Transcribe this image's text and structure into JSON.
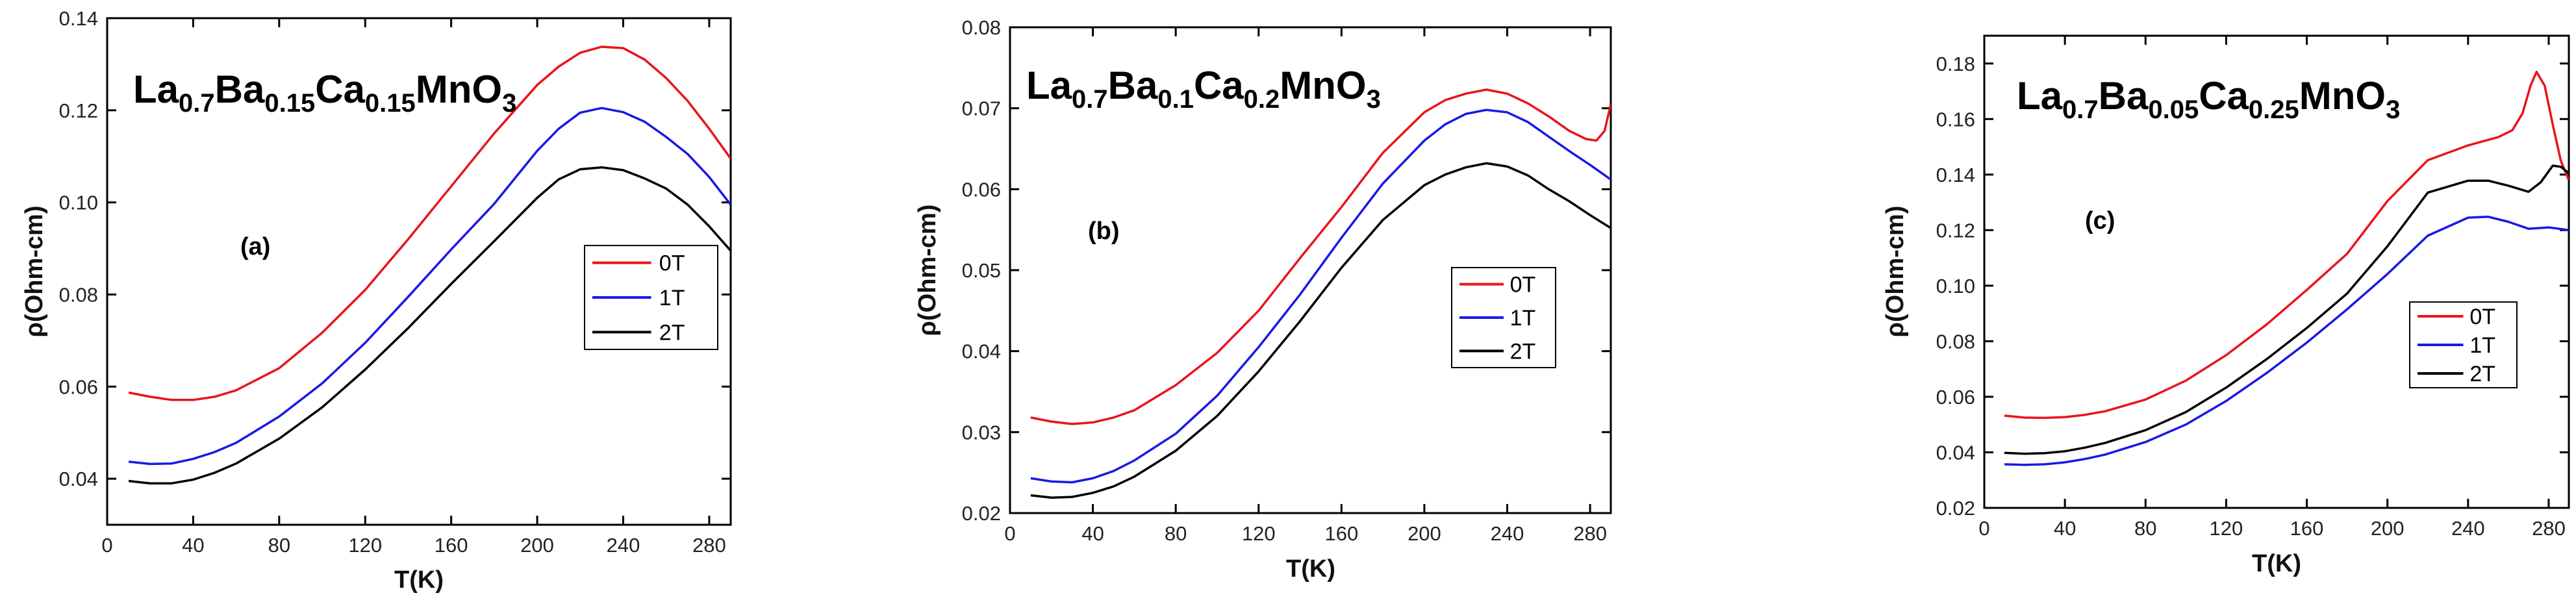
{
  "chart_data": [
    {
      "type": "line",
      "panel_label": "(a)",
      "title_parts": [
        {
          "t": "La",
          "sub": false
        },
        {
          "t": "0.7",
          "sub": true
        },
        {
          "t": "Ba",
          "sub": false
        },
        {
          "t": "0.15",
          "sub": true
        },
        {
          "t": "Ca",
          "sub": false
        },
        {
          "t": "0.15",
          "sub": true
        },
        {
          "t": "MnO",
          "sub": false
        },
        {
          "t": "3",
          "sub": true
        }
      ],
      "xlabel": "T(K)",
      "ylabel": "ρ(Ohm-cm)",
      "xlim": [
        0,
        290
      ],
      "ylim": [
        0.03,
        0.14
      ],
      "xticks": [
        "0",
        "40",
        "80",
        "120",
        "160",
        "200",
        "240",
        "280"
      ],
      "xtick_values": [
        0,
        40,
        80,
        120,
        160,
        200,
        240,
        280
      ],
      "yticks": [
        "0.04",
        "0.06",
        "0.08",
        "0.10",
        "0.12",
        "0.14"
      ],
      "ytick_values": [
        0.04,
        0.06,
        0.08,
        0.1,
        0.12,
        0.14
      ],
      "series": [
        {
          "name": "0T",
          "color": "#e8151b",
          "x": [
            10,
            20,
            30,
            40,
            50,
            60,
            80,
            100,
            120,
            140,
            160,
            180,
            200,
            210,
            220,
            230,
            240,
            250,
            260,
            270,
            280,
            290
          ],
          "y": [
            0.0587,
            0.0578,
            0.0571,
            0.0571,
            0.0578,
            0.0592,
            0.064,
            0.0717,
            0.081,
            0.092,
            0.1035,
            0.115,
            0.1255,
            0.1295,
            0.1325,
            0.1338,
            0.1335,
            0.131,
            0.127,
            0.122,
            0.116,
            0.1095
          ]
        },
        {
          "name": "1T",
          "color": "#1919e6",
          "x": [
            10,
            20,
            30,
            40,
            50,
            60,
            80,
            100,
            120,
            140,
            160,
            180,
            200,
            210,
            220,
            230,
            240,
            250,
            260,
            270,
            280,
            290
          ],
          "y": [
            0.0437,
            0.0432,
            0.0433,
            0.0443,
            0.0458,
            0.0478,
            0.0535,
            0.0607,
            0.0695,
            0.0795,
            0.0898,
            0.0997,
            0.1112,
            0.116,
            0.1195,
            0.1205,
            0.1196,
            0.1175,
            0.1142,
            0.1105,
            0.1055,
            0.0995
          ]
        },
        {
          "name": "2T",
          "color": "#000000",
          "x": [
            10,
            20,
            30,
            40,
            50,
            60,
            80,
            100,
            120,
            140,
            160,
            180,
            200,
            210,
            220,
            230,
            240,
            250,
            260,
            270,
            280,
            290
          ],
          "y": [
            0.0395,
            0.039,
            0.039,
            0.0398,
            0.0413,
            0.0433,
            0.0487,
            0.0555,
            0.0637,
            0.0727,
            0.0823,
            0.0916,
            0.101,
            0.105,
            0.1072,
            0.1076,
            0.107,
            0.1052,
            0.103,
            0.0995,
            0.0948,
            0.0895
          ]
        }
      ]
    },
    {
      "type": "line",
      "panel_label": "(b)",
      "title_parts": [
        {
          "t": "La",
          "sub": false
        },
        {
          "t": "0.7",
          "sub": true
        },
        {
          "t": "Ba",
          "sub": false
        },
        {
          "t": "0.1",
          "sub": true
        },
        {
          "t": "Ca",
          "sub": false
        },
        {
          "t": "0.2",
          "sub": true
        },
        {
          "t": "MnO",
          "sub": false
        },
        {
          "t": "3",
          "sub": true
        }
      ],
      "xlabel": "T(K)",
      "ylabel": "ρ(Ohm-cm)",
      "xlim": [
        0,
        290
      ],
      "ylim": [
        0.02,
        0.08
      ],
      "xticks": [
        "0",
        "40",
        "80",
        "120",
        "160",
        "200",
        "240",
        "280"
      ],
      "xtick_values": [
        0,
        40,
        80,
        120,
        160,
        200,
        240,
        280
      ],
      "yticks": [
        "0.02",
        "0.03",
        "0.04",
        "0.05",
        "0.06",
        "0.07",
        "0.08"
      ],
      "ytick_values": [
        0.02,
        0.03,
        0.04,
        0.05,
        0.06,
        0.07,
        0.08
      ],
      "series": [
        {
          "name": "0T",
          "color": "#e8151b",
          "x": [
            10,
            20,
            30,
            40,
            50,
            60,
            80,
            100,
            120,
            140,
            160,
            180,
            200,
            210,
            220,
            230,
            240,
            250,
            260,
            270,
            278,
            283,
            287,
            290
          ],
          "y": [
            0.0318,
            0.0313,
            0.031,
            0.0312,
            0.0318,
            0.0327,
            0.0358,
            0.0398,
            0.045,
            0.0515,
            0.0578,
            0.0645,
            0.0695,
            0.071,
            0.0718,
            0.0723,
            0.0718,
            0.0706,
            0.069,
            0.0672,
            0.0662,
            0.066,
            0.0672,
            0.0705
          ]
        },
        {
          "name": "1T",
          "color": "#1919e6",
          "x": [
            10,
            20,
            30,
            40,
            50,
            60,
            80,
            100,
            120,
            140,
            160,
            180,
            200,
            210,
            220,
            230,
            240,
            250,
            260,
            270,
            280,
            290
          ],
          "y": [
            0.0243,
            0.0239,
            0.0238,
            0.0243,
            0.0252,
            0.0265,
            0.0298,
            0.0345,
            0.0405,
            0.047,
            0.054,
            0.0607,
            0.066,
            0.068,
            0.0693,
            0.0698,
            0.0695,
            0.0683,
            0.0665,
            0.0647,
            0.063,
            0.0612
          ]
        },
        {
          "name": "2T",
          "color": "#000000",
          "x": [
            10,
            20,
            30,
            40,
            50,
            60,
            80,
            100,
            120,
            140,
            160,
            180,
            200,
            210,
            220,
            230,
            240,
            250,
            260,
            270,
            280,
            290
          ],
          "y": [
            0.0222,
            0.0219,
            0.022,
            0.0225,
            0.0233,
            0.0245,
            0.0277,
            0.032,
            0.0375,
            0.0437,
            0.0503,
            0.0562,
            0.0605,
            0.0618,
            0.0627,
            0.0632,
            0.0628,
            0.0617,
            0.06,
            0.0585,
            0.0568,
            0.0552
          ]
        }
      ]
    },
    {
      "type": "line",
      "panel_label": "(c)",
      "title_parts": [
        {
          "t": "La",
          "sub": false
        },
        {
          "t": "0.7",
          "sub": true
        },
        {
          "t": "Ba",
          "sub": false
        },
        {
          "t": "0.05",
          "sub": true
        },
        {
          "t": "Ca",
          "sub": false
        },
        {
          "t": "0.25",
          "sub": true
        },
        {
          "t": "MnO",
          "sub": false
        },
        {
          "t": "3",
          "sub": true
        }
      ],
      "xlabel": "T(K)",
      "ylabel": "ρ(Ohm-cm)",
      "xlim": [
        0,
        290
      ],
      "ylim": [
        0.02,
        0.19
      ],
      "xticks": [
        "0",
        "40",
        "80",
        "120",
        "160",
        "200",
        "240",
        "280"
      ],
      "xtick_values": [
        0,
        40,
        80,
        120,
        160,
        200,
        240,
        280
      ],
      "yticks": [
        "0.02",
        "0.04",
        "0.06",
        "0.08",
        "0.10",
        "0.12",
        "0.14",
        "0.16",
        "0.18"
      ],
      "ytick_values": [
        0.02,
        0.04,
        0.06,
        0.08,
        0.1,
        0.12,
        0.14,
        0.16,
        0.18
      ],
      "series": [
        {
          "name": "0T",
          "color": "#e8151b",
          "x": [
            10,
            20,
            30,
            40,
            50,
            60,
            80,
            100,
            120,
            140,
            160,
            180,
            200,
            220,
            240,
            255,
            262,
            267,
            271,
            274,
            278,
            282,
            286,
            290
          ],
          "y": [
            0.0532,
            0.0525,
            0.0524,
            0.0527,
            0.0535,
            0.0548,
            0.059,
            0.0658,
            0.075,
            0.086,
            0.0985,
            0.1115,
            0.1305,
            0.1452,
            0.1505,
            0.1535,
            0.156,
            0.162,
            0.172,
            0.177,
            0.172,
            0.158,
            0.145,
            0.138
          ]
        },
        {
          "name": "1T",
          "color": "#1919e6",
          "x": [
            10,
            20,
            30,
            40,
            50,
            60,
            80,
            100,
            120,
            140,
            160,
            180,
            200,
            220,
            240,
            250,
            260,
            270,
            280,
            290
          ],
          "y": [
            0.0357,
            0.0355,
            0.0357,
            0.0364,
            0.0376,
            0.0392,
            0.0437,
            0.05,
            0.0585,
            0.0685,
            0.0795,
            0.0915,
            0.1042,
            0.118,
            0.1245,
            0.1248,
            0.123,
            0.1205,
            0.121,
            0.12
          ]
        },
        {
          "name": "2T",
          "color": "#000000",
          "x": [
            10,
            20,
            30,
            40,
            50,
            60,
            80,
            100,
            120,
            140,
            160,
            180,
            200,
            220,
            240,
            250,
            260,
            270,
            276,
            282,
            286,
            290
          ],
          "y": [
            0.0398,
            0.0395,
            0.0397,
            0.0404,
            0.0417,
            0.0434,
            0.048,
            0.0545,
            0.0633,
            0.0735,
            0.0848,
            0.0972,
            0.1142,
            0.1335,
            0.1378,
            0.1378,
            0.136,
            0.1338,
            0.1372,
            0.1432,
            0.1428,
            0.1405
          ]
        }
      ]
    }
  ]
}
